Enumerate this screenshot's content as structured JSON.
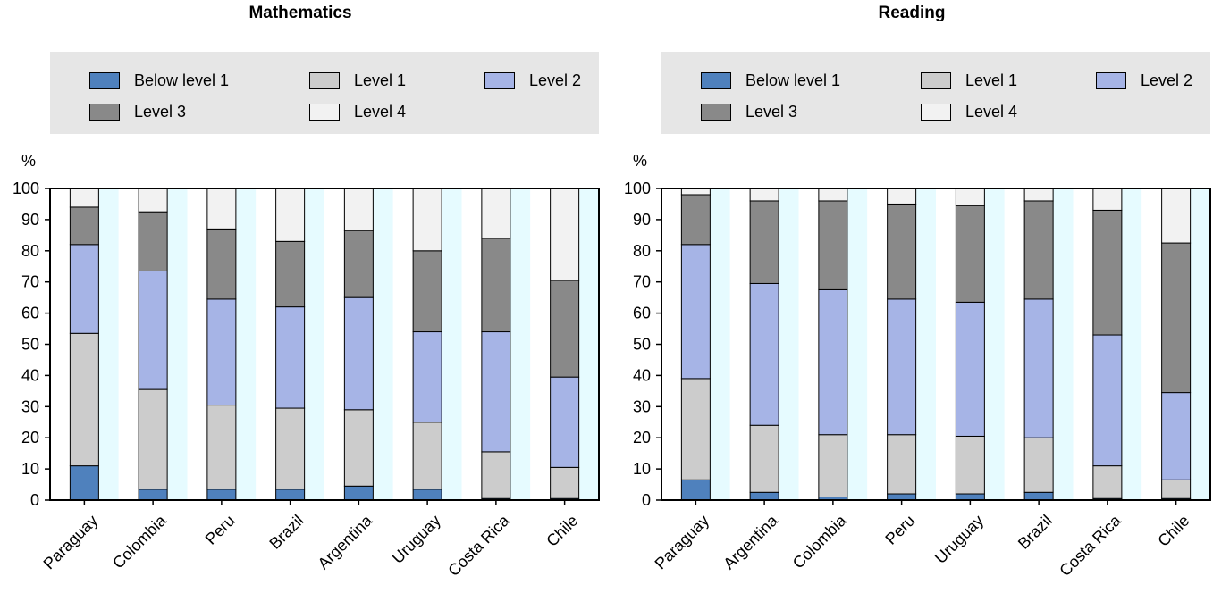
{
  "legend_labels": [
    "Below level 1",
    "Level 1",
    "Level 2",
    "Level 3",
    "Level 4"
  ],
  "colors": {
    "below_level_1": "#4f81bd",
    "level_1": "#cccccc",
    "level_2": "#a6b4e6",
    "level_3": "#898989",
    "level_4": "#f2f2f2",
    "plot_band_light": "#ffffff",
    "plot_band_tint": "#e6fbff",
    "legend_bg": "#e6e6e6"
  },
  "chart_data": [
    {
      "type": "bar",
      "stacked": true,
      "title": "Mathematics",
      "ylabel": "%",
      "ylim": [
        0,
        100
      ],
      "yticks": [
        0,
        10,
        20,
        30,
        40,
        50,
        60,
        70,
        80,
        90,
        100
      ],
      "categories": [
        "Paraguay",
        "Colombia",
        "Peru",
        "Brazil",
        "Argentina",
        "Uruguay",
        "Costa Rica",
        "Chile"
      ],
      "series": [
        {
          "name": "Below level 1",
          "values": [
            11,
            3.5,
            3.5,
            3.5,
            4.5,
            3.5,
            0.5,
            0.5
          ]
        },
        {
          "name": "Level 1",
          "values": [
            42.5,
            32,
            27,
            26,
            24.5,
            21.5,
            15,
            10
          ]
        },
        {
          "name": "Level 2",
          "values": [
            28.5,
            38,
            34,
            32.5,
            36,
            29,
            38.5,
            29
          ]
        },
        {
          "name": "Level 3",
          "values": [
            12,
            19,
            22.5,
            21,
            21.5,
            26,
            30,
            31
          ]
        },
        {
          "name": "Level 4",
          "values": [
            6,
            7.5,
            13,
            17,
            13.5,
            20,
            16,
            29.5
          ]
        }
      ],
      "grid": false,
      "legend_position": "top"
    },
    {
      "type": "bar",
      "stacked": true,
      "title": "Reading",
      "ylabel": "%",
      "ylim": [
        0,
        100
      ],
      "yticks": [
        0,
        10,
        20,
        30,
        40,
        50,
        60,
        70,
        80,
        90,
        100
      ],
      "categories": [
        "Paraguay",
        "Argentina",
        "Colombia",
        "Peru",
        "Uruguay",
        "Brazil",
        "Costa Rica",
        "Chile"
      ],
      "series": [
        {
          "name": "Below level 1",
          "values": [
            6.5,
            2.5,
            1,
            2,
            2,
            2.5,
            0.5,
            0.5
          ]
        },
        {
          "name": "Level 1",
          "values": [
            32.5,
            21.5,
            20,
            19,
            18.5,
            17.5,
            10.5,
            6
          ]
        },
        {
          "name": "Level 2",
          "values": [
            43,
            45.5,
            46.5,
            43.5,
            43,
            44.5,
            42,
            28
          ]
        },
        {
          "name": "Level 3",
          "values": [
            16,
            26.5,
            28.5,
            30.5,
            31,
            31.5,
            40,
            48
          ]
        },
        {
          "name": "Level 4",
          "values": [
            2,
            4,
            4,
            5,
            5.5,
            4,
            7,
            17.5
          ]
        }
      ],
      "grid": false,
      "legend_position": "top"
    }
  ]
}
